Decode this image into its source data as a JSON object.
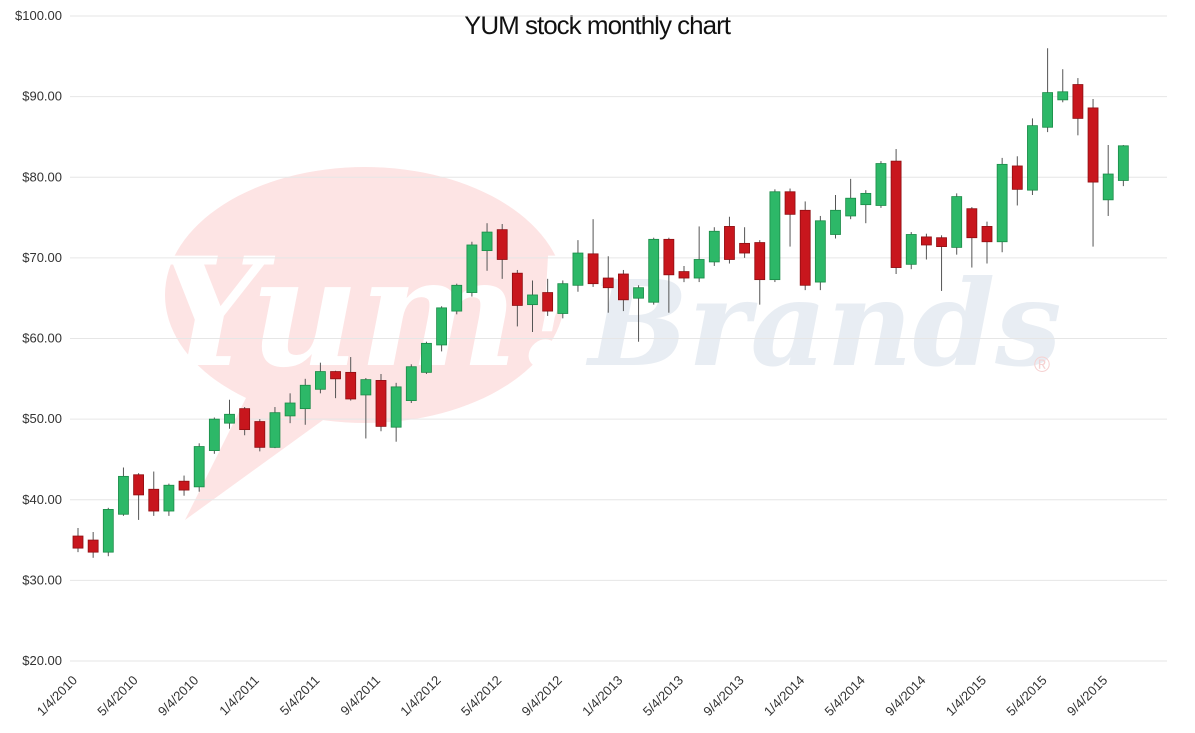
{
  "chart_data": {
    "type": "candlestick",
    "title": "YUM stock monthly chart",
    "watermark": {
      "logo": "Yum!",
      "name": "Brands",
      "mark": "®"
    },
    "categories": [
      "1/4/2010",
      null,
      null,
      null,
      "5/4/2010",
      null,
      null,
      null,
      "9/4/2010",
      null,
      null,
      null,
      "1/4/2011",
      null,
      null,
      null,
      "5/4/2011",
      null,
      null,
      null,
      "9/4/2011",
      null,
      null,
      null,
      "1/4/2012",
      null,
      null,
      null,
      "5/4/2012",
      null,
      null,
      null,
      "9/4/2012",
      null,
      null,
      null,
      "1/4/2013",
      null,
      null,
      null,
      "5/4/2013",
      null,
      null,
      null,
      "9/4/2013",
      null,
      null,
      null,
      "1/4/2014",
      null,
      null,
      null,
      "5/4/2014",
      null,
      null,
      null,
      "9/4/2014",
      null,
      null,
      null,
      "1/4/2015",
      null,
      null,
      null,
      "5/4/2015",
      null,
      null,
      null,
      "9/4/2015",
      null
    ],
    "open": [
      35.5,
      35.0,
      33.5,
      38.2,
      43.1,
      41.3,
      38.6,
      42.3,
      41.6,
      46.1,
      49.5,
      51.3,
      49.7,
      46.5,
      50.4,
      51.3,
      53.7,
      55.9,
      55.8,
      53.0,
      54.8,
      49.0,
      52.3,
      55.8,
      59.2,
      63.4,
      65.7,
      70.9,
      73.5,
      68.1,
      64.2,
      65.7,
      63.1,
      66.6,
      70.5,
      67.5,
      68.0,
      65.0,
      64.5,
      72.3,
      68.3,
      67.5,
      69.5,
      73.9,
      71.8,
      71.9,
      67.3,
      78.2,
      75.9,
      67.0,
      72.9,
      75.2,
      76.6,
      76.5,
      82.0,
      69.2,
      72.6,
      72.5,
      71.3,
      76.1,
      73.9,
      72.0,
      81.4,
      78.4,
      86.2,
      89.6,
      91.5,
      88.6,
      77.2,
      79.6
    ],
    "high": [
      36.5,
      36.0,
      39.0,
      44.0,
      43.3,
      43.5,
      42.0,
      43.0,
      47.0,
      50.2,
      52.4,
      51.5,
      50.0,
      51.5,
      53.2,
      55.0,
      57.0,
      56.0,
      57.7,
      55.1,
      55.6,
      54.5,
      56.8,
      59.6,
      64.0,
      66.8,
      72.0,
      74.3,
      74.2,
      68.5,
      67.2,
      67.4,
      67.2,
      72.2,
      74.8,
      70.2,
      68.5,
      66.6,
      72.5,
      72.5,
      69.0,
      73.9,
      73.8,
      75.1,
      73.8,
      72.2,
      78.5,
      78.6,
      77.0,
      75.2,
      77.8,
      79.8,
      78.4,
      82.0,
      83.5,
      73.2,
      73.0,
      72.8,
      78.0,
      76.3,
      74.5,
      82.4,
      82.6,
      87.3,
      96.0,
      93.4,
      92.3,
      89.7,
      84.0,
      84.0
    ],
    "low": [
      33.5,
      32.8,
      33.0,
      38.0,
      37.5,
      38.0,
      38.0,
      40.5,
      41.0,
      45.7,
      48.8,
      48.0,
      46.0,
      46.4,
      49.5,
      49.3,
      53.2,
      52.6,
      52.3,
      47.6,
      48.5,
      47.2,
      52.0,
      55.6,
      58.4,
      63.0,
      65.2,
      68.4,
      67.4,
      61.5,
      60.8,
      62.8,
      62.5,
      65.8,
      66.4,
      63.2,
      63.4,
      59.6,
      64.2,
      63.2,
      67.0,
      67.0,
      69.0,
      69.3,
      70.0,
      64.2,
      67.0,
      71.4,
      66.0,
      66.0,
      72.4,
      74.8,
      74.3,
      76.2,
      68.0,
      68.6,
      69.8,
      65.9,
      70.4,
      68.8,
      69.3,
      70.7,
      76.5,
      77.8,
      85.6,
      89.3,
      85.2,
      71.4,
      75.2,
      78.9
    ],
    "close": [
      34.0,
      33.5,
      38.8,
      42.9,
      40.6,
      38.6,
      41.8,
      41.2,
      46.6,
      50.0,
      50.6,
      48.7,
      46.5,
      50.8,
      52.0,
      54.2,
      55.9,
      55.0,
      52.5,
      54.9,
      49.1,
      54.0,
      56.5,
      59.4,
      63.8,
      66.6,
      71.6,
      73.2,
      69.8,
      64.1,
      65.4,
      63.4,
      66.8,
      70.6,
      66.8,
      66.3,
      64.8,
      66.3,
      72.3,
      67.9,
      67.5,
      69.8,
      73.3,
      69.8,
      70.6,
      67.3,
      78.2,
      75.4,
      66.6,
      74.6,
      75.9,
      77.4,
      78.0,
      81.7,
      68.8,
      72.9,
      71.6,
      71.4,
      77.6,
      72.5,
      72.0,
      81.6,
      78.5,
      86.4,
      90.5,
      90.6,
      87.3,
      79.4,
      80.4,
      83.9
    ],
    "up_color": "#2db868",
    "down_color": "#c8161d",
    "ylim": [
      20,
      100
    ],
    "yticks": [
      {
        "value": 20,
        "label": "$20.00"
      },
      {
        "value": 30,
        "label": "$30.00"
      },
      {
        "value": 40,
        "label": "$40.00"
      },
      {
        "value": 50,
        "label": "$50.00"
      },
      {
        "value": 60,
        "label": "$60.00"
      },
      {
        "value": 70,
        "label": "$70.00"
      },
      {
        "value": 80,
        "label": "$80.00"
      },
      {
        "value": 90,
        "label": "$90.00"
      },
      {
        "value": 100,
        "label": "$100.00"
      }
    ],
    "grid": true
  }
}
